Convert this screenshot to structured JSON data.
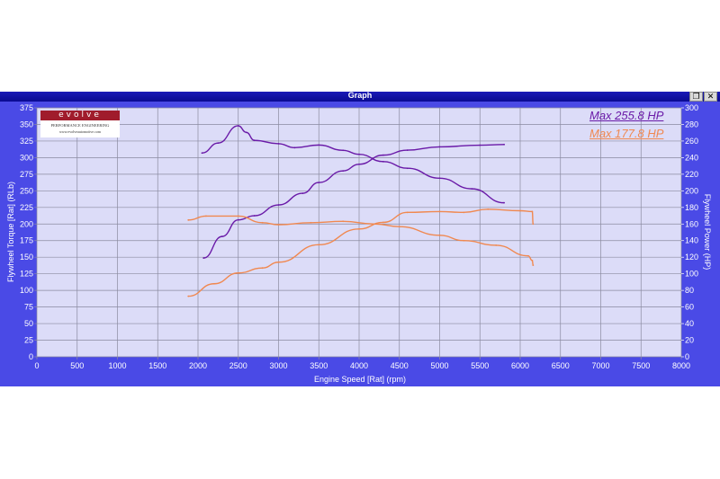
{
  "window": {
    "title": "Graph",
    "restore_icon": "restore-icon",
    "close_icon": "close-icon"
  },
  "logo": {
    "brand": "evolve",
    "tagline": "PERFORMANCE ENGINEERING",
    "url": "www.evolveautomotive.com"
  },
  "chart_data": {
    "type": "line",
    "xlabel": "Engine Speed [Rat] (rpm)",
    "ylabel_left": "Flywheel Torque [Rat] (RLb)",
    "ylabel_right": "Flywheel Power (HP)",
    "xlim": [
      0,
      8000
    ],
    "ylim_left": [
      0,
      375
    ],
    "ylim_right": [
      0,
      300
    ],
    "x_ticks": [
      0,
      500,
      1000,
      1500,
      2000,
      2500,
      3000,
      3500,
      4000,
      4500,
      5000,
      5500,
      6000,
      6500,
      7000,
      7500,
      8000
    ],
    "y_left_ticks": [
      0,
      25,
      50,
      75,
      100,
      125,
      150,
      175,
      200,
      225,
      250,
      275,
      300,
      325,
      350,
      375
    ],
    "y_right_ticks": [
      0,
      20,
      40,
      60,
      80,
      100,
      120,
      140,
      160,
      180,
      200,
      220,
      240,
      260,
      280,
      300
    ],
    "grid": true,
    "legend": {
      "placement": "top-right",
      "entries": [
        "Max 255.8 HP",
        "Max 177.8 HP"
      ]
    },
    "colors": {
      "run1": "#6a1aa8",
      "run2": "#f08850",
      "plot_bg": "#dcdcf8",
      "frame": "#4a4ae6"
    },
    "series": [
      {
        "run": 1,
        "quantity": "torque",
        "axis": "left",
        "color": "#6a1aa8",
        "x": [
          2050,
          2250,
          2500,
          2600,
          2700,
          3000,
          3200,
          3500,
          3800,
          4000,
          4300,
          4600,
          5000,
          5400,
          5800
        ],
        "y": [
          307,
          322,
          348,
          338,
          326,
          321,
          315,
          319,
          311,
          305,
          294,
          284,
          269,
          253,
          232
        ]
      },
      {
        "run": 1,
        "quantity": "power",
        "axis": "right",
        "color": "#6a1aa8",
        "x": [
          2070,
          2300,
          2500,
          2700,
          3000,
          3300,
          3500,
          3800,
          4000,
          4300,
          4600,
          5000,
          5500,
          5800
        ],
        "y": [
          119,
          145,
          165,
          170,
          183,
          197,
          210,
          224,
          232,
          243,
          249,
          253,
          255,
          255.8
        ]
      },
      {
        "run": 2,
        "quantity": "torque",
        "axis": "left",
        "color": "#f08850",
        "x": [
          1880,
          2100,
          2500,
          2800,
          3000,
          3400,
          3800,
          4200,
          4500,
          5000,
          5300,
          5700,
          6100,
          6150,
          6160
        ],
        "y": [
          206,
          212,
          212,
          202,
          199,
          202,
          204,
          200,
          196,
          183,
          175,
          168,
          152,
          145,
          138
        ]
      },
      {
        "run": 2,
        "quantity": "power",
        "axis": "right",
        "color": "#f08850",
        "x": [
          1880,
          2200,
          2500,
          2800,
          3000,
          3500,
          4000,
          4300,
          4600,
          5000,
          5300,
          5600,
          6000,
          6150,
          6160
        ],
        "y": [
          73,
          88,
          101,
          107,
          114,
          135,
          154,
          162,
          174,
          175,
          174,
          177.8,
          176,
          175,
          160
        ]
      }
    ]
  }
}
